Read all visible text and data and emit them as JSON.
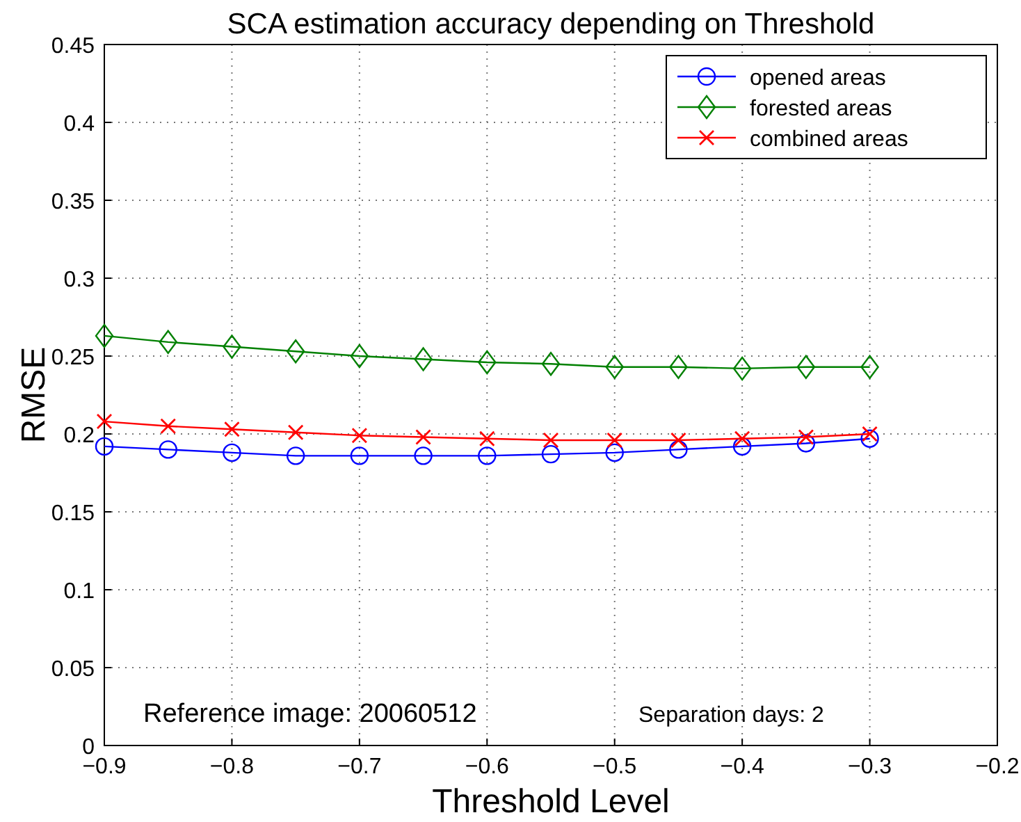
{
  "chart_data": {
    "type": "line",
    "title": "SCA estimation accuracy depending on Threshold",
    "xlabel": "Threshold Level",
    "ylabel": "RMSE",
    "x": [
      -0.9,
      -0.85,
      -0.8,
      -0.75,
      -0.7,
      -0.65,
      -0.6,
      -0.55,
      -0.5,
      -0.45,
      -0.4,
      -0.35,
      -0.3
    ],
    "series": [
      {
        "name": "opened areas",
        "color": "#0000ff",
        "marker": "circle",
        "values": [
          0.192,
          0.19,
          0.188,
          0.186,
          0.186,
          0.186,
          0.186,
          0.187,
          0.188,
          0.19,
          0.192,
          0.194,
          0.197
        ]
      },
      {
        "name": "forested areas",
        "color": "#008000",
        "marker": "diamond",
        "values": [
          0.263,
          0.259,
          0.256,
          0.253,
          0.25,
          0.248,
          0.246,
          0.245,
          0.243,
          0.243,
          0.242,
          0.243,
          0.243
        ]
      },
      {
        "name": "combined areas",
        "color": "#ff0000",
        "marker": "cross",
        "values": [
          0.208,
          0.205,
          0.203,
          0.201,
          0.199,
          0.198,
          0.197,
          0.196,
          0.196,
          0.196,
          0.197,
          0.198,
          0.2
        ]
      }
    ],
    "xlim": [
      -0.9,
      -0.2
    ],
    "xticks": [
      {
        "value": -0.9,
        "label": "−0.9"
      },
      {
        "value": -0.8,
        "label": "−0.8"
      },
      {
        "value": -0.7,
        "label": "−0.7"
      },
      {
        "value": -0.6,
        "label": "−0.6"
      },
      {
        "value": -0.5,
        "label": "−0.5"
      },
      {
        "value": -0.4,
        "label": "−0.4"
      },
      {
        "value": -0.3,
        "label": "−0.3"
      },
      {
        "value": -0.2,
        "label": "−0.2"
      }
    ],
    "ylim": [
      0,
      0.45
    ],
    "yticks": [
      0,
      0.05,
      0.1,
      0.15,
      0.2,
      0.25,
      0.3,
      0.35,
      0.4,
      0.45
    ],
    "grid": true,
    "legend": "top right",
    "line_style": "solid",
    "annotations": [
      "Reference image: 20060512",
      "Separation days: 2"
    ]
  }
}
